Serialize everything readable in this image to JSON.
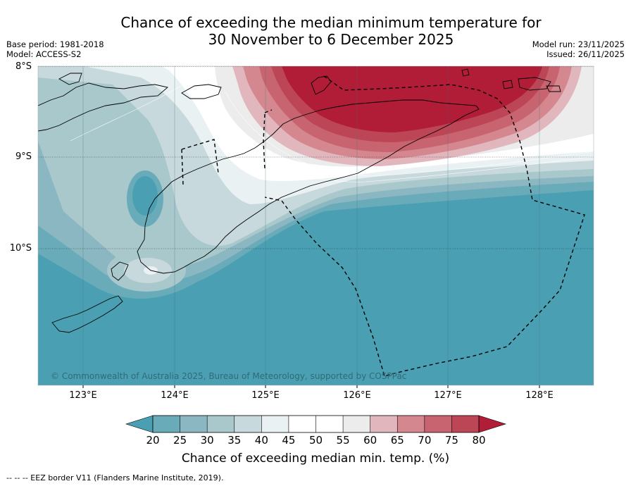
{
  "title_line1": "Chance of exceeding the median minimum temperature for",
  "title_line2": "30 November to 6 December 2025",
  "base_period": "Base period: 1981-2018",
  "model": "Model: ACCESS-S2",
  "model_run": "Model run: 23/11/2025",
  "issued": "Issued: 26/11/2025",
  "lat_labels": [
    "8°S",
    "9°S",
    "10°S"
  ],
  "lon_labels": [
    "123°E",
    "124°E",
    "125°E",
    "126°E",
    "127°E",
    "128°E"
  ],
  "copyright": "© Commonwealth of Australia 2025, Bureau of Meteorology, supported by COSPPac",
  "colorbar": {
    "ticks": [
      "20",
      "25",
      "30",
      "35",
      "40",
      "45",
      "50",
      "55",
      "60",
      "65",
      "70",
      "75",
      "80"
    ],
    "colors": [
      "#4aa0b2",
      "#6aabba",
      "#8bb7c2",
      "#a8c8cc",
      "#c8d9dd",
      "#e9f1f3",
      "#ffffff",
      "#ffffff",
      "#ececec",
      "#e1b7bd",
      "#d5878f",
      "#c86470",
      "#bd4656",
      "#b11c37"
    ],
    "label": "Chance of exceeding median min. temp. (%)"
  },
  "legend_text": "--  --  -- EEZ border V11 (Flanders Marine Institute, 2019)."
}
